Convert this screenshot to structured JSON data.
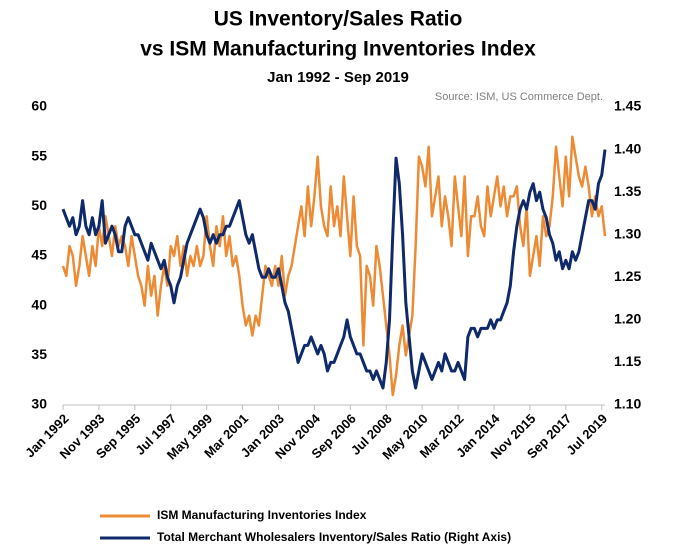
{
  "chart_data": {
    "type": "line",
    "title": [
      "US Inventory/Sales Ratio",
      "vs ISM Manufacturing Inventories Index"
    ],
    "subtitle": "Jan 1992 - Sep 2019",
    "source": "Source: ISM, US Commerce Dept.",
    "categories": [
      "Jan 1992",
      null,
      null,
      null,
      null,
      null,
      null,
      null,
      null,
      null,
      null,
      "Nov 1993",
      null,
      null,
      null,
      null,
      null,
      null,
      null,
      null,
      null,
      null,
      "Sep 1995",
      null,
      null,
      null,
      null,
      null,
      null,
      null,
      null,
      null,
      null,
      "Jul 1997",
      null,
      null,
      null,
      null,
      null,
      null,
      null,
      null,
      null,
      null,
      "May 1999",
      null,
      null,
      null,
      null,
      null,
      null,
      null,
      null,
      null,
      null,
      "Mar 2001",
      null,
      null,
      null,
      null,
      null,
      null,
      null,
      null,
      null,
      null,
      "Jan 2003",
      null,
      null,
      null,
      null,
      null,
      null,
      null,
      null,
      null,
      null,
      "Nov 2004",
      null,
      null,
      null,
      null,
      null,
      null,
      null,
      null,
      null,
      null,
      "Sep 2006",
      null,
      null,
      null,
      null,
      null,
      null,
      null,
      null,
      null,
      null,
      "Jul 2008",
      null,
      null,
      null,
      null,
      null,
      null,
      null,
      null,
      null,
      null,
      "May 2010",
      null,
      null,
      null,
      null,
      null,
      null,
      null,
      null,
      null,
      null,
      "Mar 2012",
      null,
      null,
      null,
      null,
      null,
      null,
      null,
      null,
      null,
      null,
      "Jan 2014",
      null,
      null,
      null,
      null,
      null,
      null,
      null,
      null,
      null,
      null,
      "Nov 2015",
      null,
      null,
      null,
      null,
      null,
      null,
      null,
      null,
      null,
      null,
      "Sep 2017",
      null,
      null,
      null,
      null,
      null,
      null,
      null,
      null,
      null,
      null,
      "Jul 2019",
      null
    ],
    "series": [
      {
        "name": "ISM Manufacturing Inventories Index",
        "color": "#ED8B35",
        "axis": "y",
        "values": [
          44,
          43,
          46,
          45,
          42,
          44,
          47,
          45,
          43,
          46,
          44,
          48,
          46,
          49,
          47,
          45,
          48,
          46,
          47,
          46,
          44,
          47,
          45,
          43,
          42,
          40,
          44,
          41,
          43,
          39,
          42,
          44,
          42,
          46,
          45,
          47,
          44,
          46,
          43,
          45,
          44,
          46,
          44,
          45,
          49,
          46,
          44,
          48,
          46,
          49,
          45,
          47,
          44,
          45,
          43,
          40,
          38,
          39,
          37,
          39,
          38,
          41,
          44,
          43,
          42,
          44,
          42,
          45,
          41,
          43,
          44,
          46,
          48,
          50,
          47,
          52,
          48,
          51,
          55,
          50,
          48,
          47,
          52,
          48,
          50,
          47,
          53,
          49,
          45,
          51,
          46,
          45,
          36,
          44,
          43,
          40,
          46,
          44,
          41,
          38,
          35,
          31,
          33,
          36,
          38,
          35,
          37,
          39,
          46,
          55,
          54,
          52,
          56,
          49,
          51,
          53,
          48,
          51,
          49,
          46,
          53,
          50,
          47,
          53,
          45,
          49,
          49,
          51,
          48,
          47,
          52,
          49,
          51,
          53,
          50,
          52,
          49,
          51,
          51,
          52,
          48,
          46,
          50,
          43,
          45,
          47,
          44,
          49,
          47,
          48,
          51,
          56,
          53,
          50,
          55,
          51,
          57,
          55,
          53,
          52,
          54,
          52,
          49,
          51,
          49,
          50,
          47
        ]
      },
      {
        "name": "Total Merchant Wholesalers Inventory/Sales Ratio (Right Axis)",
        "color": "#0E2A6B",
        "axis": "y2",
        "values": [
          1.33,
          1.32,
          1.31,
          1.32,
          1.3,
          1.31,
          1.34,
          1.31,
          1.3,
          1.32,
          1.3,
          1.31,
          1.34,
          1.29,
          1.3,
          1.31,
          1.3,
          1.28,
          1.28,
          1.31,
          1.32,
          1.31,
          1.3,
          1.3,
          1.29,
          1.28,
          1.27,
          1.29,
          1.28,
          1.27,
          1.26,
          1.27,
          1.25,
          1.24,
          1.22,
          1.24,
          1.25,
          1.27,
          1.29,
          1.3,
          1.31,
          1.32,
          1.33,
          1.32,
          1.3,
          1.29,
          1.3,
          1.29,
          1.3,
          1.3,
          1.31,
          1.31,
          1.32,
          1.33,
          1.34,
          1.32,
          1.3,
          1.29,
          1.3,
          1.28,
          1.26,
          1.25,
          1.25,
          1.26,
          1.25,
          1.25,
          1.26,
          1.24,
          1.22,
          1.21,
          1.19,
          1.17,
          1.15,
          1.16,
          1.17,
          1.17,
          1.18,
          1.17,
          1.16,
          1.17,
          1.16,
          1.14,
          1.15,
          1.15,
          1.16,
          1.17,
          1.18,
          1.2,
          1.18,
          1.17,
          1.16,
          1.16,
          1.15,
          1.14,
          1.14,
          1.13,
          1.14,
          1.13,
          1.12,
          1.15,
          1.2,
          1.3,
          1.39,
          1.36,
          1.3,
          1.22,
          1.18,
          1.14,
          1.12,
          1.14,
          1.16,
          1.15,
          1.14,
          1.13,
          1.14,
          1.15,
          1.14,
          1.16,
          1.15,
          1.14,
          1.14,
          1.15,
          1.14,
          1.13,
          1.18,
          1.19,
          1.19,
          1.18,
          1.19,
          1.19,
          1.19,
          1.2,
          1.19,
          1.2,
          1.2,
          1.21,
          1.22,
          1.24,
          1.28,
          1.31,
          1.33,
          1.34,
          1.33,
          1.35,
          1.36,
          1.34,
          1.35,
          1.33,
          1.32,
          1.3,
          1.29,
          1.27,
          1.28,
          1.26,
          1.27,
          1.26,
          1.28,
          1.27,
          1.28,
          1.3,
          1.32,
          1.34,
          1.34,
          1.33,
          1.36,
          1.37,
          1.4
        ]
      }
    ],
    "ylim": [
      30,
      60
    ],
    "yticks": [
      30,
      35,
      40,
      45,
      50,
      55,
      60
    ],
    "y2lim": [
      1.1,
      1.45
    ],
    "y2ticks": [
      {
        "value": 1.1,
        "label": "1.10"
      },
      1.15,
      {
        "value": 1.2,
        "label": "1.20"
      },
      1.25,
      {
        "value": 1.3,
        "label": "1.30"
      },
      1.35,
      {
        "value": 1.4,
        "label": "1.40"
      },
      1.45
    ],
    "grid": false,
    "legend": "bottom"
  }
}
